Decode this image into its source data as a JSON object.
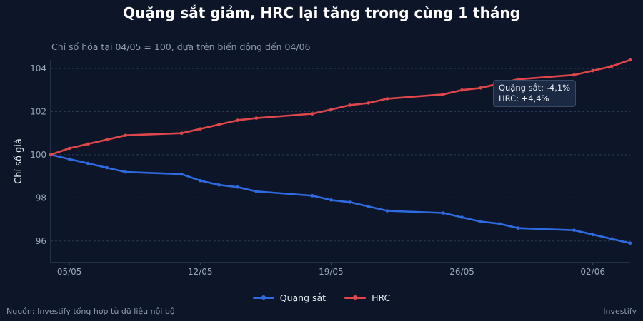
{
  "header": {
    "title": "Quặng sắt giảm, HRC lại tăng trong cùng 1 tháng",
    "subtitle": "Chỉ số hóa tại 04/05 = 100, dựa trên biến động đến 04/06"
  },
  "footer": {
    "source": "Nguồn: Investify tổng hợp từ dữ liệu nội bộ",
    "brand": "Investify"
  },
  "tooltip": {
    "line1": "Quặng sắt: -4,1%",
    "line2": "HRC: +4,4%"
  },
  "colors": {
    "background": "#0d1628",
    "iron_ore": "#2f6be0",
    "hrc": "#e0474c",
    "grid": "#2a3952",
    "axis_text": "#9aa6ba"
  },
  "chart_data": {
    "type": "line",
    "title": "Quặng sắt giảm, HRC lại tăng trong cùng 1 tháng",
    "subtitle": "Chỉ số hóa tại 04/05 = 100, dựa trên biến động đến 04/06",
    "xlabel": "",
    "ylabel": "Chỉ số giá",
    "x": [
      "04/05",
      "05/05",
      "06/05",
      "07/05",
      "08/05",
      "11/05",
      "12/05",
      "13/05",
      "14/05",
      "15/05",
      "18/05",
      "19/05",
      "20/05",
      "21/05",
      "22/05",
      "25/05",
      "26/05",
      "27/05",
      "28/05",
      "29/05",
      "01/06",
      "02/06",
      "03/06",
      "04/06"
    ],
    "x_ticks": [
      "05/05",
      "12/05",
      "19/05",
      "26/05",
      "02/06"
    ],
    "ylim": [
      95,
      104.4
    ],
    "y_ticks": [
      96,
      98,
      100,
      102,
      104
    ],
    "grid": "horizontal dashed",
    "legend": "bottom-center",
    "series": [
      {
        "name": "Quặng sắt",
        "values": [
          100,
          99.8,
          99.6,
          99.4,
          99.2,
          99.1,
          98.8,
          98.6,
          98.5,
          98.3,
          98.1,
          97.9,
          97.8,
          97.6,
          97.4,
          97.3,
          97.1,
          96.9,
          96.8,
          96.6,
          96.5,
          96.3,
          96.1,
          95.9
        ]
      },
      {
        "name": "HRC",
        "values": [
          100,
          100.3,
          100.5,
          100.7,
          100.9,
          101.0,
          101.2,
          101.4,
          101.6,
          101.7,
          101.9,
          102.1,
          102.3,
          102.4,
          102.6,
          102.8,
          103.0,
          103.1,
          103.3,
          103.5,
          103.7,
          103.9,
          104.1,
          104.4
        ]
      }
    ],
    "day_offsets": [
      0,
      1,
      2,
      3,
      4,
      7,
      8,
      9,
      10,
      11,
      14,
      15,
      16,
      17,
      18,
      21,
      22,
      23,
      24,
      25,
      28,
      29,
      30,
      31
    ]
  }
}
